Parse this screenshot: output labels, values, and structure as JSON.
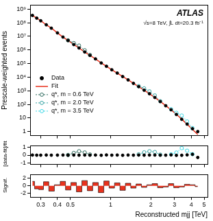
{
  "chart_data": [
    {
      "type": "scatter",
      "log": true,
      "y_label": "Prescale-weighted events",
      "annotations": [
        "ATLAS",
        "√s=8 TeV, ∫L dt=20.3 fb⁻¹"
      ],
      "legend": "left",
      "tick_labels": "y",
      "xlim": [
        0.25,
        5.3
      ],
      "xticks": [
        0.3,
        0.4,
        0.5,
        1,
        2,
        3,
        4,
        5
      ],
      "ylim": [
        0.5,
        2000000000.0
      ],
      "yticks": [
        1,
        10,
        {
          "value": 100,
          "label": "10²"
        },
        {
          "value": 1000,
          "label": "10³"
        },
        {
          "value": 10000,
          "label": "10⁴"
        },
        {
          "value": 100000,
          "label": "10⁵"
        },
        {
          "value": 1000000,
          "label": "10⁶"
        },
        {
          "value": 10000000,
          "label": "10⁷"
        },
        {
          "value": 100000000,
          "label": "10⁸"
        },
        {
          "value": 1000000000,
          "label": "10⁹"
        }
      ],
      "x": [
        0.26,
        0.28,
        0.3,
        0.33,
        0.36,
        0.4,
        0.44,
        0.48,
        0.53,
        0.58,
        0.64,
        0.7,
        0.77,
        0.85,
        0.93,
        1.02,
        1.12,
        1.23,
        1.35,
        1.48,
        1.62,
        1.78,
        1.95,
        2.14,
        2.35,
        2.58,
        2.83,
        3.1,
        3.4,
        3.73,
        4.09,
        4.48
      ],
      "series": [
        {
          "name": "Data",
          "color": "#000000",
          "marker": "circle",
          "values": [
            350000000.0,
            220000000.0,
            140000000.0,
            71000000.0,
            40000000.0,
            18000000.0,
            8900000.0,
            5000000.0,
            2500000.0,
            1400000.0,
            710000.0,
            400000.0,
            220000.0,
            110000.0,
            63000.0,
            35000.0,
            20000.0,
            11000.0,
            6300,
            3500,
            2000,
            1100,
            600,
            320,
            160,
            79,
            40,
            18,
            7.9,
            3.5,
            1.6,
            1
          ]
        },
        {
          "name": "Fit",
          "color": "#e8321e",
          "type": "line",
          "line_style": "solid",
          "values": [
            345000000.0,
            222000000.0,
            141000000.0,
            70000000.0,
            40500000.0,
            18000000.0,
            8800000.0,
            5050000.0,
            2480000.0,
            1420000.0,
            700000.0,
            405000.0,
            218000.0,
            112000.0,
            62000.0,
            35200.0,
            19800.0,
            11200.0,
            6250,
            3520,
            1980,
            1110,
            595,
            318,
            162,
            80,
            39,
            18.5,
            8.1,
            3.4,
            1.45,
            0.6
          ]
        },
        {
          "name": "q*, m = 0.6 TeV",
          "color": "#2e6b5e",
          "marker": "open_circle",
          "line_style": "dotted",
          "x": [
            0.48,
            0.53,
            0.58,
            0.64,
            0.7
          ],
          "values": [
            5100000.0,
            3200000.0,
            2100000.0,
            950000.0,
            430000.0
          ]
        },
        {
          "name": "q*, m = 2.0 TeV",
          "color": "#3aa5a5",
          "marker": "open_circle",
          "line_style": "dotted",
          "x": [
            1.62,
            1.78,
            1.95,
            2.14,
            2.35
          ],
          "values": [
            2200,
            1500,
            900,
            450,
            170
          ]
        },
        {
          "name": "q*, m = 3.5 TeV",
          "color": "#3fd8e6",
          "marker": "open_circle",
          "line_style": "dotted",
          "x": [
            2.83,
            3.1,
            3.4,
            3.73,
            4.09
          ],
          "values": [
            44,
            24,
            15,
            5.5,
            1.8
          ]
        }
      ]
    },
    {
      "type": "scatter",
      "log": "x",
      "tick_labels": "y",
      "y_label": "[data-fit]/fit",
      "xlim": [
        0.25,
        5.3
      ],
      "xticks": [
        0.3,
        0.4,
        0.5,
        1,
        2,
        3,
        4,
        5
      ],
      "ylim": [
        -1.2,
        1.2
      ],
      "yticks": [
        -1,
        0,
        1
      ],
      "x": [
        0.26,
        0.28,
        0.3,
        0.33,
        0.36,
        0.4,
        0.44,
        0.48,
        0.53,
        0.58,
        0.64,
        0.7,
        0.77,
        0.85,
        0.93,
        1.02,
        1.12,
        1.23,
        1.35,
        1.48,
        1.62,
        1.78,
        1.95,
        2.14,
        2.35,
        2.58,
        2.83,
        3.1,
        3.4,
        3.73,
        4.09,
        4.48
      ],
      "series": [
        {
          "color": "#000000",
          "marker": "circle",
          "values": [
            0.01,
            -0.01,
            -0.01,
            0.01,
            -0.01,
            0,
            0.01,
            -0.01,
            0.01,
            -0.01,
            0.01,
            -0.01,
            0.01,
            -0.02,
            0.02,
            -0.01,
            0.01,
            -0.02,
            0.01,
            -0.01,
            0.01,
            -0.01,
            0.01,
            0.01,
            -0.01,
            -0.01,
            0.03,
            -0.03,
            -0.02,
            0.03,
            0.1,
            -0.3
          ]
        },
        {
          "color": "#2e6b5e",
          "marker": "open_circle",
          "line_style": "dotted",
          "x": [
            0.48,
            0.53,
            0.58,
            0.64,
            0.7
          ],
          "values": [
            0.02,
            0.28,
            0.5,
            0.34,
            0.08
          ]
        },
        {
          "color": "#3aa5a5",
          "marker": "open_circle",
          "line_style": "dotted",
          "x": [
            1.62,
            1.78,
            1.95,
            2.14,
            2.35
          ],
          "values": [
            0.1,
            0.36,
            0.5,
            0.4,
            0.06
          ]
        },
        {
          "color": "#3fd8e6",
          "marker": "open_circle",
          "line_style": "dotted",
          "x": [
            2.83,
            3.1,
            3.4,
            3.73,
            4.09
          ],
          "values": [
            0.1,
            0.33,
            0.9,
            0.57,
            0.12
          ]
        }
      ]
    },
    {
      "type": "bar",
      "log": "x",
      "x_label": "Reconstructed mjj [TeV]",
      "y_label": "Signif.",
      "xlim": [
        0.25,
        5.3
      ],
      "xticks": [
        0.3,
        0.4,
        0.5,
        1,
        2,
        3,
        4,
        5
      ],
      "ylim": [
        -3,
        3
      ],
      "yticks": [
        -2,
        0,
        2
      ],
      "color": "#e8321e",
      "x": [
        0.26,
        0.28,
        0.3,
        0.33,
        0.36,
        0.4,
        0.44,
        0.48,
        0.53,
        0.58,
        0.64,
        0.7,
        0.77,
        0.85,
        0.93,
        1.02,
        1.12,
        1.23,
        1.35,
        1.48,
        1.62,
        1.78,
        1.95,
        2.14,
        2.35,
        2.58,
        2.83,
        3.1,
        3.4,
        3.73,
        4.09,
        4.48
      ],
      "values": [
        1.2,
        -0.8,
        -1.0,
        1.1,
        -1.4,
        0.3,
        1.2,
        -1.1,
        0.9,
        -1.6,
        1.4,
        -1.3,
        0.9,
        -1.8,
        1.3,
        -0.6,
        0.8,
        -1.2,
        0.7,
        -0.6,
        0.5,
        -0.4,
        0.3,
        0.6,
        -0.5,
        -0.3,
        0.6,
        -0.5,
        -0.3,
        0.4,
        0.3,
        -0.2
      ]
    }
  ]
}
